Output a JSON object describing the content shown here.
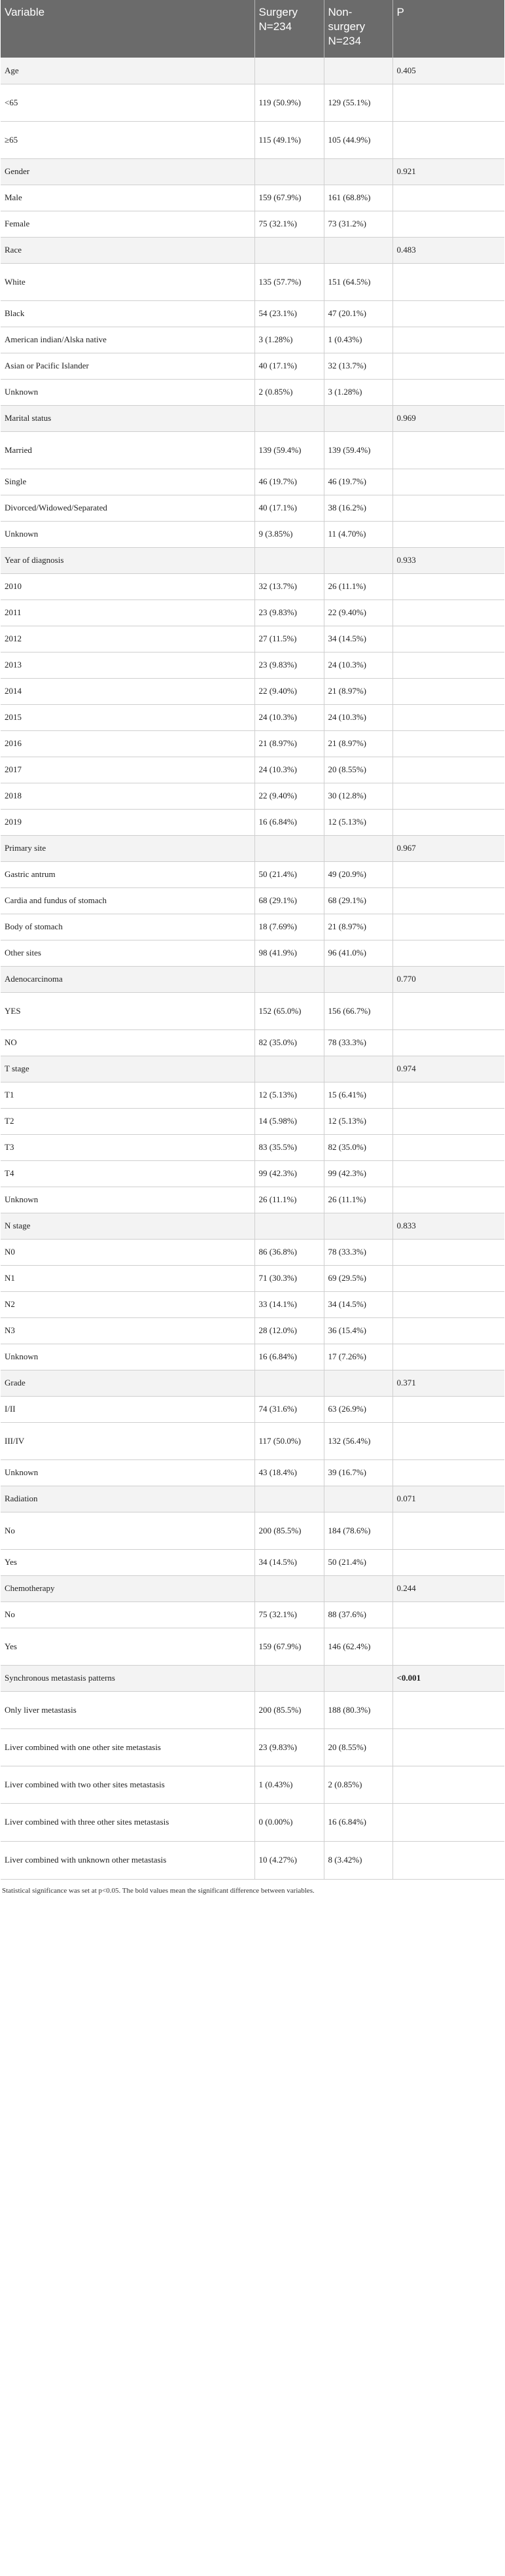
{
  "header": {
    "variable": "Variable",
    "surgery": "Surgery N=234",
    "non_surgery": "Non-surgery N=234",
    "p": "P"
  },
  "rows": [
    {
      "label": "Age",
      "surgery": "",
      "non_surgery": "",
      "p": "0.405",
      "group": true
    },
    {
      "label": "<65",
      "surgery": "119 (50.9%)",
      "non_surgery": "129 (55.1%)",
      "p": ""
    },
    {
      "label": "≥65",
      "surgery": "115 (49.1%)",
      "non_surgery": "105 (44.9%)",
      "p": ""
    },
    {
      "label": "Gender",
      "surgery": "",
      "non_surgery": "",
      "p": "0.921",
      "group": true
    },
    {
      "label": "Male",
      "surgery": "159 (67.9%)",
      "non_surgery": "161 (68.8%)",
      "p": ""
    },
    {
      "label": "Female",
      "surgery": "75 (32.1%)",
      "non_surgery": "73 (31.2%)",
      "p": ""
    },
    {
      "label": "Race",
      "surgery": "",
      "non_surgery": "",
      "p": "0.483",
      "group": true
    },
    {
      "label": "White",
      "surgery": "135 (57.7%)",
      "non_surgery": "151 (64.5%)",
      "p": ""
    },
    {
      "label": "Black",
      "surgery": "54 (23.1%)",
      "non_surgery": "47 (20.1%)",
      "p": ""
    },
    {
      "label": "American indian/Alska native",
      "surgery": "3 (1.28%)",
      "non_surgery": "1 (0.43%)",
      "p": ""
    },
    {
      "label": "Asian or Pacific Islander",
      "surgery": "40 (17.1%)",
      "non_surgery": "32 (13.7%)",
      "p": ""
    },
    {
      "label": "Unknown",
      "surgery": "2 (0.85%)",
      "non_surgery": "3 (1.28%)",
      "p": ""
    },
    {
      "label": "Marital status",
      "surgery": "",
      "non_surgery": "",
      "p": "0.969",
      "group": true
    },
    {
      "label": "Married",
      "surgery": "139 (59.4%)",
      "non_surgery": "139 (59.4%)",
      "p": ""
    },
    {
      "label": "Single",
      "surgery": "46 (19.7%)",
      "non_surgery": "46 (19.7%)",
      "p": ""
    },
    {
      "label": "Divorced/Widowed/Separated",
      "surgery": "40 (17.1%)",
      "non_surgery": "38 (16.2%)",
      "p": ""
    },
    {
      "label": "Unknown",
      "surgery": "9 (3.85%)",
      "non_surgery": "11 (4.70%)",
      "p": ""
    },
    {
      "label": "Year of diagnosis",
      "surgery": "",
      "non_surgery": "",
      "p": "0.933",
      "group": true
    },
    {
      "label": "2010",
      "surgery": "32 (13.7%)",
      "non_surgery": "26 (11.1%)",
      "p": ""
    },
    {
      "label": "2011",
      "surgery": "23 (9.83%)",
      "non_surgery": "22 (9.40%)",
      "p": ""
    },
    {
      "label": "2012",
      "surgery": "27 (11.5%)",
      "non_surgery": "34 (14.5%)",
      "p": ""
    },
    {
      "label": "2013",
      "surgery": "23 (9.83%)",
      "non_surgery": "24 (10.3%)",
      "p": ""
    },
    {
      "label": "2014",
      "surgery": "22 (9.40%)",
      "non_surgery": "21 (8.97%)",
      "p": ""
    },
    {
      "label": "2015",
      "surgery": "24 (10.3%)",
      "non_surgery": "24 (10.3%)",
      "p": ""
    },
    {
      "label": "2016",
      "surgery": "21 (8.97%)",
      "non_surgery": "21 (8.97%)",
      "p": ""
    },
    {
      "label": "2017",
      "surgery": "24 (10.3%)",
      "non_surgery": "20 (8.55%)",
      "p": ""
    },
    {
      "label": "2018",
      "surgery": "22 (9.40%)",
      "non_surgery": "30 (12.8%)",
      "p": ""
    },
    {
      "label": "2019",
      "surgery": "16 (6.84%)",
      "non_surgery": "12 (5.13%)",
      "p": ""
    },
    {
      "label": "Primary site",
      "surgery": "",
      "non_surgery": "",
      "p": "0.967",
      "group": true
    },
    {
      "label": "Gastric antrum",
      "surgery": "50 (21.4%)",
      "non_surgery": "49 (20.9%)",
      "p": ""
    },
    {
      "label": "Cardia and fundus of stomach",
      "surgery": "68 (29.1%)",
      "non_surgery": "68 (29.1%)",
      "p": ""
    },
    {
      "label": "Body of stomach",
      "surgery": "18 (7.69%)",
      "non_surgery": "21 (8.97%)",
      "p": ""
    },
    {
      "label": "Other sites",
      "surgery": "98 (41.9%)",
      "non_surgery": "96 (41.0%)",
      "p": ""
    },
    {
      "label": "Adenocarcinoma",
      "surgery": "",
      "non_surgery": "",
      "p": "0.770",
      "group": true
    },
    {
      "label": "YES",
      "surgery": "152 (65.0%)",
      "non_surgery": "156 (66.7%)",
      "p": ""
    },
    {
      "label": "NO",
      "surgery": "82 (35.0%)",
      "non_surgery": "78 (33.3%)",
      "p": ""
    },
    {
      "label": "T stage",
      "surgery": "",
      "non_surgery": "",
      "p": "0.974",
      "group": true
    },
    {
      "label": "T1",
      "surgery": "12 (5.13%)",
      "non_surgery": "15 (6.41%)",
      "p": ""
    },
    {
      "label": "T2",
      "surgery": "14 (5.98%)",
      "non_surgery": "12 (5.13%)",
      "p": ""
    },
    {
      "label": "T3",
      "surgery": "83 (35.5%)",
      "non_surgery": "82 (35.0%)",
      "p": ""
    },
    {
      "label": "T4",
      "surgery": "99 (42.3%)",
      "non_surgery": "99 (42.3%)",
      "p": ""
    },
    {
      "label": "Unknown",
      "surgery": "26 (11.1%)",
      "non_surgery": "26 (11.1%)",
      "p": ""
    },
    {
      "label": "N stage",
      "surgery": "",
      "non_surgery": "",
      "p": "0.833",
      "group": true
    },
    {
      "label": "N0",
      "surgery": "86 (36.8%)",
      "non_surgery": "78 (33.3%)",
      "p": ""
    },
    {
      "label": "N1",
      "surgery": "71 (30.3%)",
      "non_surgery": "69 (29.5%)",
      "p": ""
    },
    {
      "label": "N2",
      "surgery": "33 (14.1%)",
      "non_surgery": "34 (14.5%)",
      "p": ""
    },
    {
      "label": "N3",
      "surgery": "28 (12.0%)",
      "non_surgery": "36 (15.4%)",
      "p": ""
    },
    {
      "label": "Unknown",
      "surgery": "16 (6.84%)",
      "non_surgery": "17 (7.26%)",
      "p": ""
    },
    {
      "label": "Grade",
      "surgery": "",
      "non_surgery": "",
      "p": "0.371",
      "group": true
    },
    {
      "label": "I/II",
      "surgery": "74 (31.6%)",
      "non_surgery": "63 (26.9%)",
      "p": ""
    },
    {
      "label": "III/IV",
      "surgery": "117 (50.0%)",
      "non_surgery": "132 (56.4%)",
      "p": ""
    },
    {
      "label": "Unknown",
      "surgery": "43 (18.4%)",
      "non_surgery": "39 (16.7%)",
      "p": ""
    },
    {
      "label": "Radiation",
      "surgery": "",
      "non_surgery": "",
      "p": "0.071",
      "group": true
    },
    {
      "label": "No",
      "surgery": "200 (85.5%)",
      "non_surgery": "184 (78.6%)",
      "p": ""
    },
    {
      "label": "Yes",
      "surgery": "34 (14.5%)",
      "non_surgery": "50 (21.4%)",
      "p": ""
    },
    {
      "label": "Chemotherapy",
      "surgery": "",
      "non_surgery": "",
      "p": "0.244",
      "group": true
    },
    {
      "label": "No",
      "surgery": "75 (32.1%)",
      "non_surgery": "88 (37.6%)",
      "p": ""
    },
    {
      "label": "Yes",
      "surgery": "159 (67.9%)",
      "non_surgery": "146 (62.4%)",
      "p": ""
    },
    {
      "label": "Synchronous metastasis patterns",
      "surgery": "",
      "non_surgery": "",
      "p": "<0.001",
      "group": true,
      "bold_p": true
    },
    {
      "label": "Only liver metastasis",
      "surgery": "200 (85.5%)",
      "non_surgery": "188 (80.3%)",
      "p": ""
    },
    {
      "label": "Liver combined with one other site metastasis",
      "surgery": "23 (9.83%)",
      "non_surgery": "20 (8.55%)",
      "p": ""
    },
    {
      "label": "Liver combined with two other sites metastasis",
      "surgery": "1 (0.43%)",
      "non_surgery": "2 (0.85%)",
      "p": ""
    },
    {
      "label": "Liver combined with three other sites metastasis",
      "surgery": "0 (0.00%)",
      "non_surgery": "16 (6.84%)",
      "p": ""
    },
    {
      "label": "Liver combined with unknown other metastasis",
      "surgery": "10 (4.27%)",
      "non_surgery": "8 (3.42%)",
      "p": ""
    }
  ],
  "footnote": "Statistical significance was set at p<0.05. The bold values mean the significant difference between variables."
}
